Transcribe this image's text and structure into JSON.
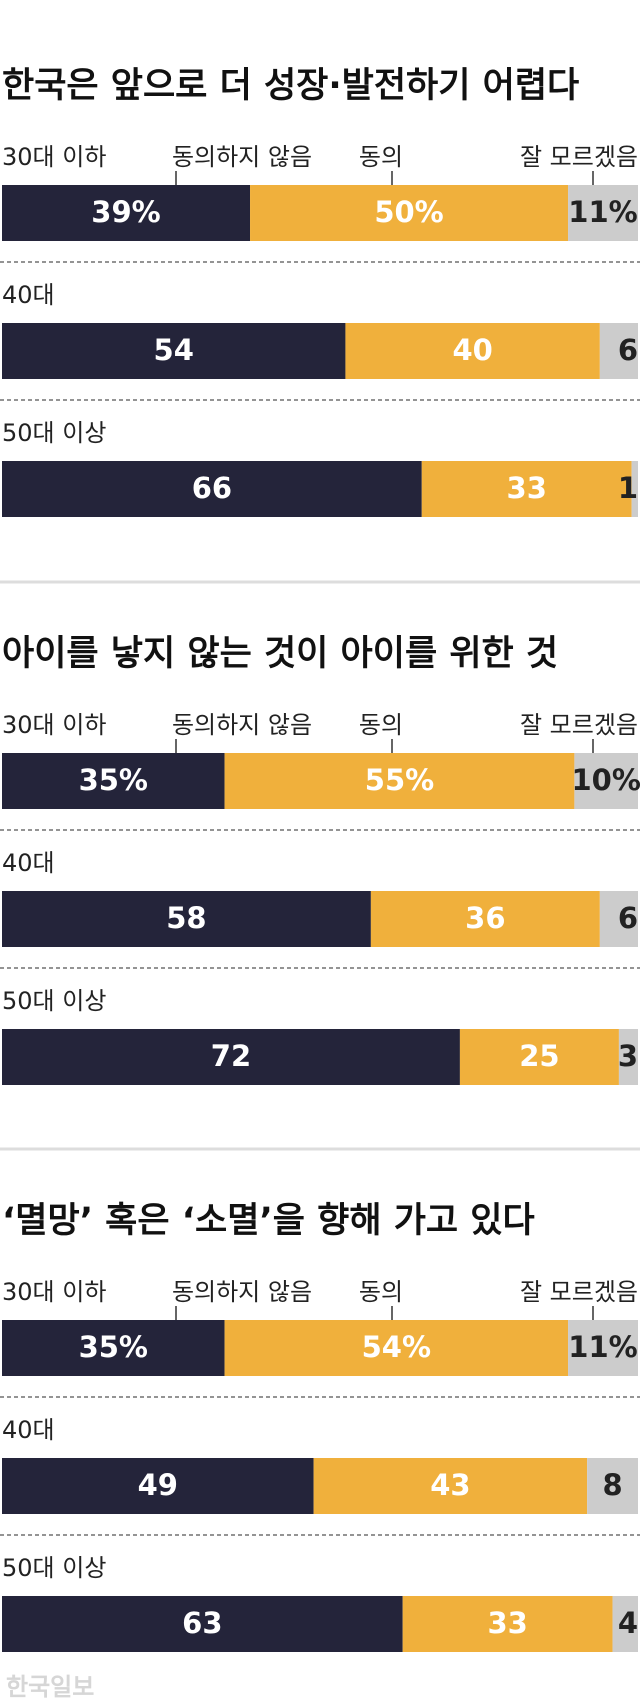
{
  "chart_data": [
    {
      "type": "stacked-bar",
      "title": "한국은 앞으로 더 성장·발전하기 어렵다",
      "categories": [
        "30대 이하",
        "40대",
        "50대 이상"
      ],
      "xlim": [
        0,
        100
      ],
      "series": [
        {
          "name": "동의하지 않음",
          "color": "#24243a",
          "values": [
            39,
            54,
            66
          ],
          "value_labels": [
            "39%",
            "54",
            "66"
          ]
        },
        {
          "name": "동의",
          "color": "#f0b03c",
          "values": [
            50,
            40,
            33
          ],
          "value_labels": [
            "50%",
            "40",
            "33"
          ]
        },
        {
          "name": "잘 모르겠음",
          "color": "#cccccc",
          "values": [
            11,
            6,
            1
          ],
          "value_labels": [
            "11%",
            "6",
            "1"
          ]
        }
      ]
    },
    {
      "type": "stacked-bar",
      "title": "아이를 낳지 않는 것이 아이를 위한 것",
      "categories": [
        "30대 이하",
        "40대",
        "50대 이상"
      ],
      "xlim": [
        0,
        100
      ],
      "series": [
        {
          "name": "동의하지 않음",
          "color": "#24243a",
          "values": [
            35,
            58,
            72
          ],
          "value_labels": [
            "35%",
            "58",
            "72"
          ]
        },
        {
          "name": "동의",
          "color": "#f0b03c",
          "values": [
            55,
            36,
            25
          ],
          "value_labels": [
            "55%",
            "36",
            "25"
          ]
        },
        {
          "name": "잘 모르겠음",
          "color": "#cccccc",
          "values": [
            10,
            6,
            3
          ],
          "value_labels": [
            "10%",
            "6",
            "3"
          ]
        }
      ]
    },
    {
      "type": "stacked-bar",
      "title": "‘멸망’ 혹은 ‘소멸’을 향해 가고 있다",
      "categories": [
        "30대 이하",
        "40대",
        "50대 이상"
      ],
      "xlim": [
        0,
        100
      ],
      "series": [
        {
          "name": "동의하지 않음",
          "color": "#24243a",
          "values": [
            35,
            49,
            63
          ],
          "value_labels": [
            "35%",
            "49",
            "63"
          ]
        },
        {
          "name": "동의",
          "color": "#f0b03c",
          "values": [
            54,
            43,
            33
          ],
          "value_labels": [
            "54%",
            "43",
            "33"
          ]
        },
        {
          "name": "잘 모르겠음",
          "color": "#cccccc",
          "values": [
            11,
            8,
            4
          ],
          "value_labels": [
            "11%",
            "8",
            "4"
          ]
        }
      ]
    }
  ],
  "credit": "한국일보"
}
